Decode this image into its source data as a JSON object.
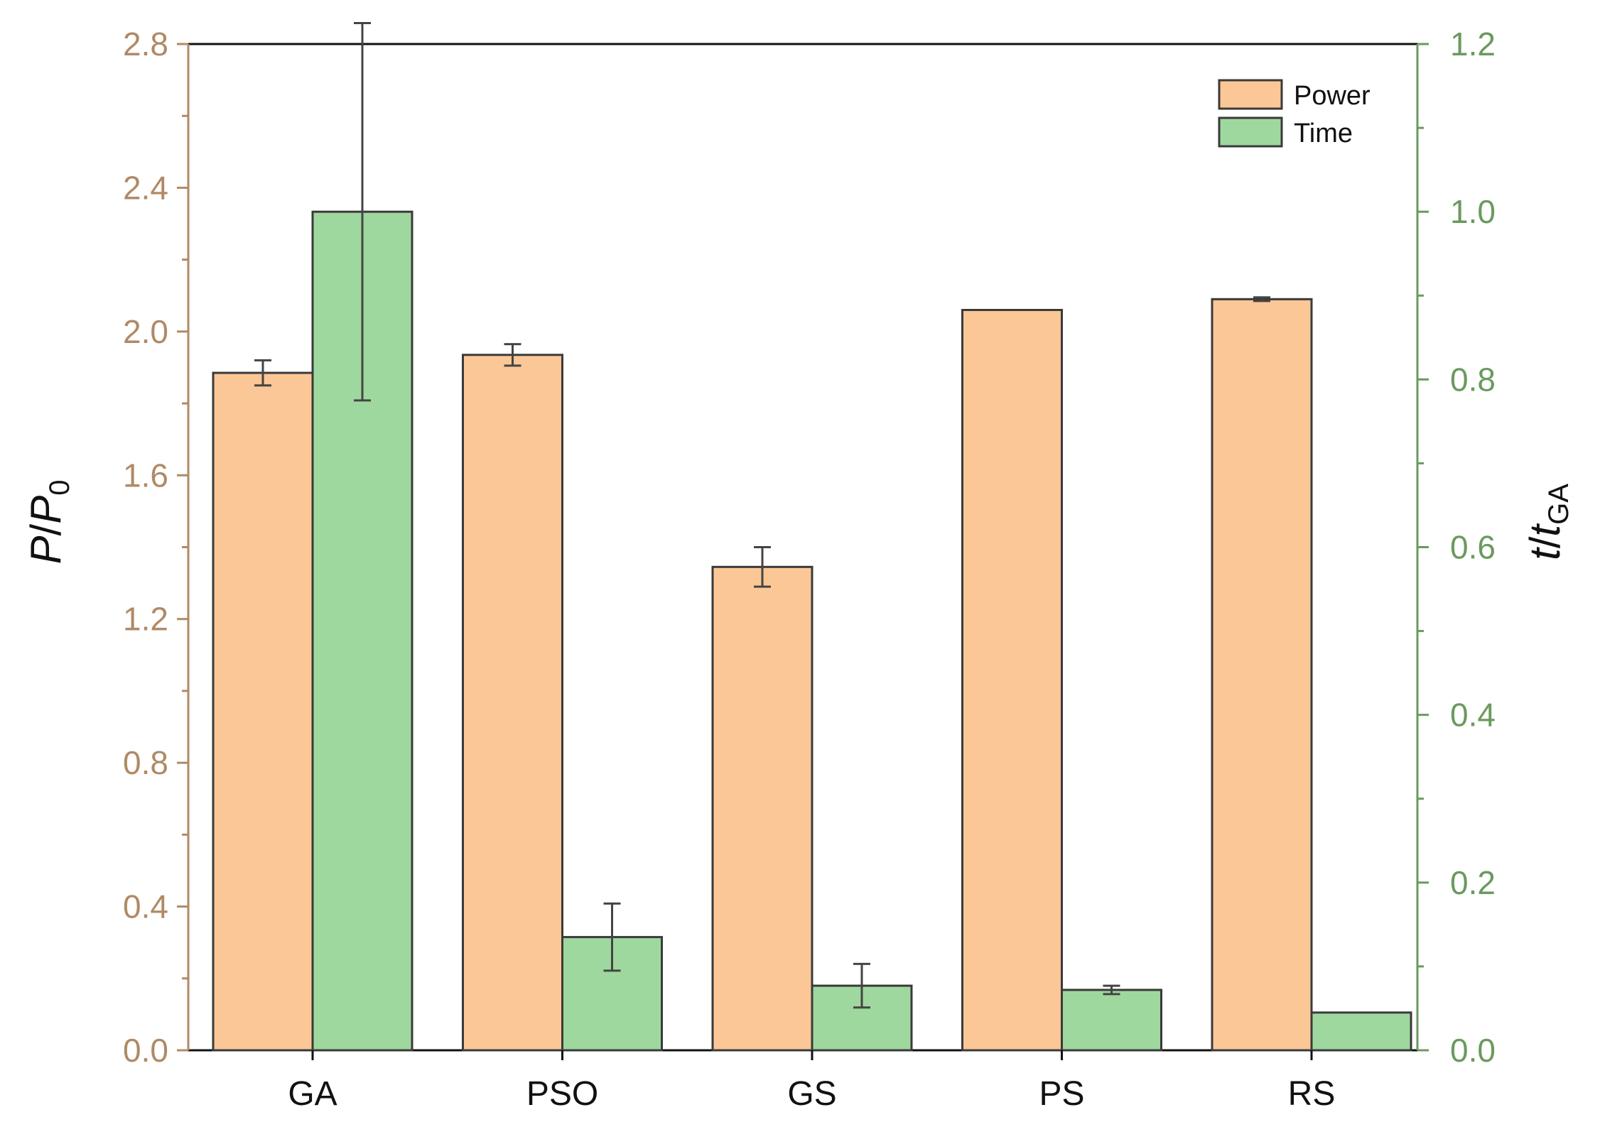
{
  "chart_data": {
    "type": "bar",
    "categories": [
      "GA",
      "PSO",
      "GS",
      "PS",
      "RS"
    ],
    "series": [
      {
        "name": "Power",
        "axis": "left",
        "color": "#fcc796",
        "values": [
          1.885,
          1.935,
          1.345,
          2.06,
          2.09
        ],
        "errors": [
          0.035,
          0.03,
          0.055,
          0.0,
          0.005
        ]
      },
      {
        "name": "Time",
        "axis": "right",
        "color": "#9fd89f",
        "values": [
          1.0,
          0.135,
          0.077,
          0.072,
          0.045
        ],
        "errors": [
          0.225,
          0.04,
          0.026,
          0.005,
          0.0
        ]
      }
    ],
    "ylabel_left": {
      "italic_part": "P",
      "sep": "/",
      "italic_base": "P",
      "subscript": "0"
    },
    "ylabel_right": {
      "italic_part": "t",
      "sep": "/",
      "italic_base": "t",
      "subscript": "GA"
    },
    "ylim_left": [
      0,
      2.8
    ],
    "ylim_right": [
      0,
      1.2
    ],
    "yticks_left": [
      "0.0",
      "0.4",
      "0.8",
      "1.2",
      "1.6",
      "2.0",
      "2.4",
      "2.8"
    ],
    "yticks_right": [
      "0.0",
      "0.2",
      "0.4",
      "0.6",
      "0.8",
      "1.0",
      "1.2"
    ],
    "legend": [
      "Power",
      "Time"
    ],
    "legend_position": "top-right",
    "colors": {
      "left_axis": "#b08a66",
      "right_axis": "#6a9a5e",
      "bar_edge": "#3a3a3a",
      "error_bar": "#444444"
    }
  }
}
